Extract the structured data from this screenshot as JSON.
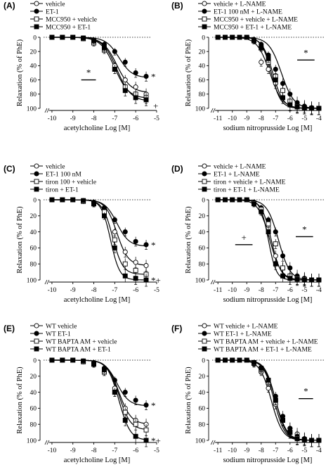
{
  "chart_data": [
    {
      "type": "line",
      "panel": "(A)",
      "xlabel": "acetylcholine Log [M]",
      "ylabel": "Relaxation (% of PhE)",
      "xlim": [
        -10.4,
        -5.3
      ],
      "ylim": [
        0,
        100
      ],
      "xticks": [
        -10,
        -9,
        -8,
        -7,
        -6,
        -5
      ],
      "yticks": [
        0,
        20,
        40,
        60,
        80,
        100
      ],
      "x": [
        -10,
        -9.5,
        -9,
        -8.5,
        -8,
        -7.5,
        -7,
        -6.5,
        -6,
        -5.5
      ],
      "series": [
        {
          "name": "vehicle",
          "marker": "circle-open",
          "fit": {
            "ec50": -6.9,
            "max": 78,
            "hill": 1.3
          },
          "values": [
            0,
            0,
            0,
            2,
            6,
            15,
            40,
            60,
            70,
            80
          ]
        },
        {
          "name": "ET-1",
          "marker": "circle-filled",
          "fit": {
            "ec50": -6.8,
            "max": 57,
            "hill": 1.4
          },
          "values": [
            0,
            0,
            0,
            1,
            4,
            10,
            20,
            35,
            50,
            55
          ]
        },
        {
          "name": "MCC950 + vehicle",
          "marker": "square-open",
          "fit": {
            "ec50": -7.0,
            "max": 86,
            "hill": 1.3
          },
          "values": [
            0,
            0,
            0,
            2,
            8,
            18,
            45,
            70,
            80,
            85
          ]
        },
        {
          "name": "MCC950 + ET-1",
          "marker": "square-filled",
          "fit": {
            "ec50": -6.9,
            "max": 90,
            "hill": 1.3
          },
          "values": [
            0,
            0,
            0,
            1,
            5,
            15,
            45,
            75,
            85,
            88
          ]
        }
      ],
      "annotations": [
        {
          "text": "*",
          "kind": "bar",
          "x_range": [
            -8.6,
            -7.9
          ],
          "y": 60
        },
        {
          "text": "*",
          "x": -5.5,
          "y": 55
        },
        {
          "text": "+",
          "x": -5.4,
          "y": 96
        }
      ],
      "legend_position": "top-left"
    },
    {
      "type": "line",
      "panel": "(B)",
      "xlabel": "sodium nitroprusside Log [M]",
      "ylabel": "Relaxation (% of PhE)",
      "xlim": [
        -11.4,
        -3.7
      ],
      "ylim": [
        0,
        100
      ],
      "xticks": [
        -11,
        -10,
        -9,
        -8,
        -7,
        -6,
        -5,
        -4
      ],
      "yticks": [
        0,
        20,
        40,
        60,
        80,
        100
      ],
      "x": [
        -11,
        -10.5,
        -10,
        -9.5,
        -9,
        -8.5,
        -8,
        -7.5,
        -7,
        -6.5,
        -6,
        -5.5,
        -5,
        -4.5,
        -4
      ],
      "series": [
        {
          "name": "vehicle + L-NAME",
          "marker": "circle-open",
          "fit": {
            "ec50": -7.4,
            "max": 100,
            "hill": 1.0
          },
          "values": [
            0,
            0,
            0,
            0,
            0,
            5,
            35,
            45,
            65,
            85,
            95,
            98,
            99,
            100,
            100
          ]
        },
        {
          "name": "ET-1 100 nM + L-NAME",
          "marker": "circle-filled",
          "fit": {
            "ec50": -6.6,
            "max": 100,
            "hill": 1.0
          },
          "values": [
            0,
            0,
            0,
            0,
            0,
            3,
            10,
            25,
            45,
            65,
            80,
            92,
            97,
            99,
            100
          ]
        },
        {
          "name": "MCC950 + vehicle + L-NAME",
          "marker": "square-open",
          "fit": {
            "ec50": -7.2,
            "max": 100,
            "hill": 1.2
          },
          "values": [
            0,
            0,
            0,
            0,
            0,
            5,
            15,
            35,
            55,
            75,
            90,
            97,
            99,
            100,
            100
          ]
        },
        {
          "name": "MCC950 + ET-1 + L-NAME",
          "marker": "square-filled",
          "fit": {
            "ec50": -7.3,
            "max": 100,
            "hill": 1.3
          },
          "values": [
            0,
            0,
            0,
            0,
            0,
            5,
            15,
            30,
            60,
            85,
            95,
            98,
            99,
            100,
            100
          ]
        }
      ],
      "annotations": [
        {
          "text": "*",
          "kind": "bar",
          "x_range": [
            -5.5,
            -4.3
          ],
          "y": 32
        }
      ],
      "legend_position": "top-left"
    },
    {
      "type": "line",
      "panel": "(C)",
      "xlabel": "acetylcholine Log [M]",
      "ylabel": "Relaxation (% of PhE)",
      "xlim": [
        -10.4,
        -5.3
      ],
      "ylim": [
        0,
        100
      ],
      "xticks": [
        -10,
        -9,
        -8,
        -7,
        -6,
        -5
      ],
      "yticks": [
        0,
        20,
        40,
        60,
        80,
        100
      ],
      "x": [
        -10,
        -9.5,
        -9,
        -8.5,
        -8,
        -7.5,
        -7,
        -6.5,
        -6,
        -5.5
      ],
      "series": [
        {
          "name": "vehicle",
          "marker": "circle-open",
          "fit": {
            "ec50": -6.9,
            "max": 82,
            "hill": 1.6
          },
          "values": [
            0,
            0,
            0,
            2,
            5,
            12,
            40,
            65,
            78,
            82
          ]
        },
        {
          "name": "ET-1 100 nM",
          "marker": "circle-filled",
          "fit": {
            "ec50": -6.9,
            "max": 58,
            "hill": 1.5
          },
          "values": [
            0,
            0,
            0,
            1,
            3,
            10,
            25,
            40,
            52,
            56
          ]
        },
        {
          "name": "tiron 100 + vehicle",
          "marker": "square-open",
          "fit": {
            "ec50": -7.1,
            "max": 93,
            "hill": 1.8
          },
          "values": [
            0,
            0,
            0,
            2,
            5,
            15,
            50,
            80,
            88,
            93
          ]
        },
        {
          "name": "tiron + ET-1",
          "marker": "square-filled",
          "fit": {
            "ec50": -7.2,
            "max": 100,
            "hill": 2.0
          },
          "values": [
            0,
            0,
            0,
            1,
            5,
            20,
            60,
            95,
            98,
            100
          ]
        }
      ],
      "annotations": [
        {
          "text": "*",
          "x": -5.5,
          "y": 56
        },
        {
          "text": "*+",
          "x": -5.5,
          "y": 100
        }
      ],
      "legend_position": "top-left"
    },
    {
      "type": "line",
      "panel": "(D)",
      "xlabel": "sodium nitroprusside Log [M]",
      "ylabel": "Relaxation (% of PhE)",
      "xlim": [
        -11.4,
        -3.7
      ],
      "ylim": [
        0,
        100
      ],
      "xticks": [
        -11,
        -10,
        -9,
        -8,
        -7,
        -6,
        -5,
        -4
      ],
      "yticks": [
        0,
        20,
        40,
        60,
        80,
        100
      ],
      "x": [
        -11,
        -10.5,
        -10,
        -9.5,
        -9,
        -8.5,
        -8,
        -7.5,
        -7,
        -6.5,
        -6,
        -5.5,
        -5,
        -4.5,
        -4
      ],
      "series": [
        {
          "name": "vehicle + L-NAME",
          "marker": "circle-open",
          "fit": {
            "ec50": -7.4,
            "max": 100,
            "hill": 1.1
          },
          "values": [
            0,
            0,
            0,
            0,
            0,
            5,
            15,
            35,
            70,
            85,
            95,
            98,
            99,
            100,
            100
          ]
        },
        {
          "name": "ET-1 + L-NAME",
          "marker": "circle-filled",
          "fit": {
            "ec50": -6.8,
            "max": 100,
            "hill": 1.1
          },
          "values": [
            0,
            0,
            0,
            0,
            0,
            3,
            10,
            25,
            40,
            70,
            85,
            95,
            98,
            100,
            100
          ]
        },
        {
          "name": "tiron + vehicle + L-NAME",
          "marker": "square-open",
          "fit": {
            "ec50": -7.3,
            "max": 100,
            "hill": 1.3
          },
          "values": [
            0,
            0,
            0,
            0,
            0,
            4,
            12,
            30,
            55,
            85,
            95,
            98,
            99,
            100,
            100
          ]
        },
        {
          "name": "tiron + ET-1 + L-NAME",
          "marker": "square-filled",
          "fit": {
            "ec50": -7.5,
            "max": 100,
            "hill": 1.6
          },
          "values": [
            0,
            0,
            0,
            0,
            0,
            5,
            15,
            40,
            80,
            95,
            98,
            99,
            100,
            100,
            100
          ]
        }
      ],
      "annotations": [
        {
          "text": "+",
          "kind": "bar",
          "x_range": [
            -9.8,
            -8.6
          ],
          "y": 56
        },
        {
          "text": "*",
          "kind": "bar",
          "x_range": [
            -5.6,
            -4.4
          ],
          "y": 46
        }
      ],
      "legend_position": "top-left"
    },
    {
      "type": "line",
      "panel": "(E)",
      "xlabel": "acetylcholine Log [M]",
      "ylabel": "Relaxation (% of PhE)",
      "xlim": [
        -10.4,
        -5.3
      ],
      "ylim": [
        0,
        100
      ],
      "xticks": [
        -10,
        -9,
        -8,
        -7,
        -6,
        -5
      ],
      "yticks": [
        0,
        20,
        40,
        60,
        80,
        100
      ],
      "x": [
        -10,
        -9.5,
        -9,
        -8.5,
        -8,
        -7.5,
        -7,
        -6.5,
        -6,
        -5.5
      ],
      "series": [
        {
          "name": "WT vehicle",
          "marker": "circle-open",
          "fit": {
            "ec50": -6.8,
            "max": 80,
            "hill": 1.5
          },
          "values": [
            0,
            0,
            0,
            2,
            5,
            15,
            35,
            60,
            75,
            80
          ]
        },
        {
          "name": "WT ET-1",
          "marker": "circle-filled",
          "fit": {
            "ec50": -6.9,
            "max": 57,
            "hill": 1.5
          },
          "values": [
            0,
            0,
            0,
            1,
            3,
            10,
            25,
            40,
            50,
            56
          ]
        },
        {
          "name": "WT BAPTA AM + vehicle",
          "marker": "square-open",
          "fit": {
            "ec50": -6.8,
            "max": 87,
            "hill": 1.6
          },
          "values": [
            0,
            0,
            0,
            2,
            5,
            15,
            40,
            65,
            80,
            87
          ]
        },
        {
          "name": "WT BAPTA AM + ET-1",
          "marker": "square-filled",
          "fit": {
            "ec50": -6.8,
            "max": 100,
            "hill": 1.6
          },
          "values": [
            0,
            0,
            0,
            1,
            5,
            12,
            40,
            75,
            95,
            100
          ]
        }
      ],
      "annotations": [
        {
          "text": "*",
          "x": -5.5,
          "y": 56
        },
        {
          "text": "*+",
          "x": -5.5,
          "y": 100
        }
      ],
      "legend_position": "top-left"
    },
    {
      "type": "line",
      "panel": "(F)",
      "xlabel": "sodium nitroprusside Log [M]",
      "ylabel": "Relaxation (% of PhE)",
      "xlim": [
        -11.4,
        -3.7
      ],
      "ylim": [
        0,
        100
      ],
      "xticks": [
        -11,
        -10,
        -9,
        -8,
        -7,
        -6,
        -5,
        -4
      ],
      "yticks": [
        0,
        20,
        40,
        60,
        80,
        100
      ],
      "x": [
        -11,
        -10.5,
        -10,
        -9.5,
        -9,
        -8.5,
        -8,
        -7.5,
        -7,
        -6.5,
        -6,
        -5.5,
        -5,
        -4.5,
        -4
      ],
      "series": [
        {
          "name": "WT vehicle + L-NAME",
          "marker": "circle-open",
          "fit": {
            "ec50": -7.3,
            "max": 100,
            "hill": 1.1
          },
          "values": [
            0,
            0,
            0,
            0,
            0,
            5,
            15,
            35,
            55,
            75,
            85,
            92,
            98,
            100,
            100
          ]
        },
        {
          "name": "WT ET-1 + L-NAME",
          "marker": "circle-filled",
          "fit": {
            "ec50": -7.0,
            "max": 100,
            "hill": 1.1
          },
          "values": [
            0,
            0,
            0,
            0,
            0,
            3,
            10,
            25,
            45,
            70,
            85,
            95,
            98,
            100,
            100
          ]
        },
        {
          "name": "WT BAPTA AM + vehicle + L-NAME",
          "marker": "square-open",
          "fit": {
            "ec50": -7.1,
            "max": 100,
            "hill": 1.2
          },
          "values": [
            0,
            0,
            0,
            0,
            0,
            4,
            12,
            28,
            50,
            75,
            90,
            97,
            99,
            100,
            100
          ]
        },
        {
          "name": "WT BAPTA AM + ET-1 + L-NAME",
          "marker": "square-filled",
          "fit": {
            "ec50": -7.0,
            "max": 100,
            "hill": 1.2
          },
          "values": [
            0,
            0,
            0,
            0,
            0,
            3,
            10,
            25,
            50,
            75,
            90,
            98,
            99,
            100,
            100
          ]
        }
      ],
      "annotations": [
        {
          "text": "*",
          "kind": "bar",
          "x_range": [
            -5.4,
            -4.4
          ],
          "y": 48
        }
      ],
      "legend_position": "top-left"
    }
  ]
}
